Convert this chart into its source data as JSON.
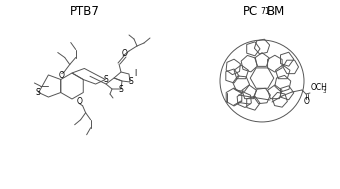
{
  "title_left": "PTB7",
  "title_right_pc": "PC",
  "title_right_sub": "71",
  "title_right_bm": "BM",
  "bg_color": "#ffffff",
  "line_color": "#555555",
  "text_color": "#000000",
  "fig_width": 3.4,
  "fig_height": 1.89,
  "dpi": 100,
  "lw": 0.7
}
